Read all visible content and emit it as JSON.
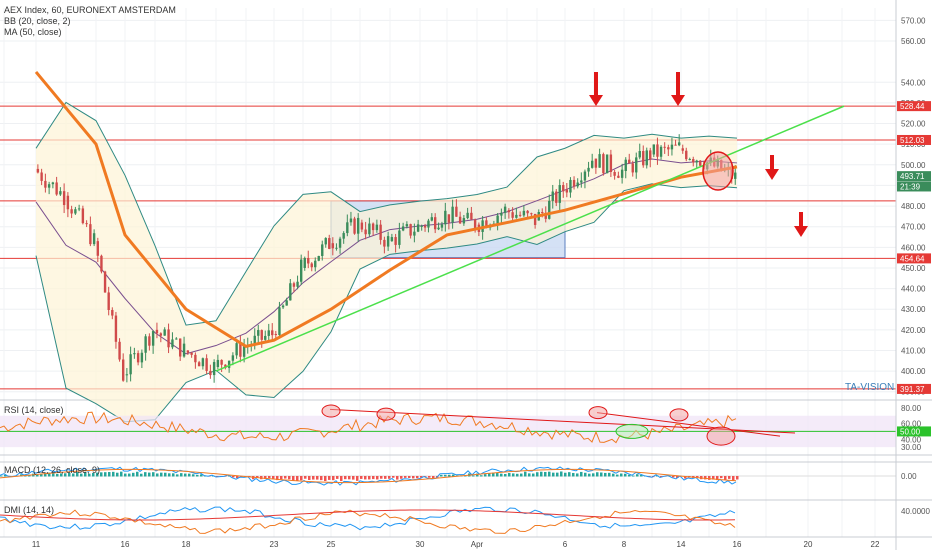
{
  "chart_title": "AEX Index, 60, EURONEXT AMSTERDAM",
  "watermark": "TA-VISION",
  "indicators": {
    "bb": "BB (20, close, 2)",
    "ma": "MA (50, close)",
    "rsi": "RSI (14, close)",
    "macd": "MACD (12, 26, close, 9)",
    "dmi": "DMI (14, 14)"
  },
  "colors": {
    "ma": "#f07a22",
    "bb": "#2f8a83",
    "level": "#e53935",
    "trend": "#4be04b",
    "box_fill": "#c9d9f2",
    "box_border": "#5b7fc0",
    "up": "#3a8c5b",
    "down": "#d04a4a"
  },
  "price_axis": {
    "min": 386,
    "max": 576,
    "ticks": [
      "570.00",
      "560.00",
      "540.00",
      "530.00",
      "520.00",
      "510.00",
      "500.00",
      "490.00",
      "480.00",
      "470.00",
      "460.00",
      "450.00",
      "440.00",
      "430.00",
      "420.00",
      "410.00",
      "400.00",
      "390.00"
    ]
  },
  "price_tags": [
    {
      "label": "528.44",
      "value": 528.44,
      "color": "#e53935"
    },
    {
      "label": "512.03",
      "value": 512.03,
      "color": "#e53935"
    },
    {
      "label": "493.71",
      "value": 494.5,
      "color": "#3a8c5b"
    },
    {
      "label": "21:39",
      "value": 489.5,
      "color": "#3a8c5b"
    },
    {
      "label": "454.64",
      "value": 454.64,
      "color": "#e53935"
    },
    {
      "label": "391.37",
      "value": 391.37,
      "color": "#e53935"
    }
  ],
  "rsi_axis": {
    "ticks": [
      "80.00",
      "60.00",
      "50.00",
      "40.00",
      "30.00"
    ],
    "current": "50.00"
  },
  "macd_axis": {
    "ticks": [
      "0.00"
    ]
  },
  "dmi_axis": {
    "ticks": [
      "40.0000"
    ]
  },
  "x_axis": {
    "labels": [
      "11",
      "16",
      "18",
      "23",
      "25",
      "30",
      "Apr",
      "6",
      "8",
      "14",
      "16",
      "20",
      "22"
    ]
  },
  "chart_data": {
    "type": "candlestick",
    "title": "AEX Index, 60, EURONEXT AMSTERDAM",
    "horizontal_levels": [
      528.44,
      512.03,
      482.5,
      454.64,
      391.37
    ],
    "consolidation_boxes": [
      {
        "from": "Mar 25",
        "to": "Apr 6",
        "low": 455,
        "high": 482.5
      },
      {
        "from": "Apr 6",
        "to": "Apr 18",
        "low": 482.5,
        "high": 512
      }
    ],
    "trendline": {
      "from": {
        "date": "Mar 19",
        "value": 400
      },
      "to": {
        "date": "Apr 20",
        "value": 528.44
      }
    },
    "close_series": [
      {
        "x": "Mar 11",
        "close": 498
      },
      {
        "x": "Mar 12",
        "close": 485
      },
      {
        "x": "Mar 13",
        "close": 463
      },
      {
        "x": "Mar 16",
        "close": 398
      },
      {
        "x": "Mar 17",
        "close": 420
      },
      {
        "x": "Mar 18",
        "close": 410
      },
      {
        "x": "Mar 19",
        "close": 402
      },
      {
        "x": "Mar 20",
        "close": 412
      },
      {
        "x": "Mar 23",
        "close": 418
      },
      {
        "x": "Mar 24",
        "close": 450
      },
      {
        "x": "Mar 25",
        "close": 462
      },
      {
        "x": "Mar 26",
        "close": 472
      },
      {
        "x": "Mar 27",
        "close": 463
      },
      {
        "x": "Mar 30",
        "close": 470
      },
      {
        "x": "Mar 31",
        "close": 476
      },
      {
        "x": "Apr 1",
        "close": 471
      },
      {
        "x": "Apr 2",
        "close": 478
      },
      {
        "x": "Apr 3",
        "close": 473
      },
      {
        "x": "Apr 6",
        "close": 488
      },
      {
        "x": "Apr 7",
        "close": 503
      },
      {
        "x": "Apr 8",
        "close": 497
      },
      {
        "x": "Apr 9",
        "close": 505
      },
      {
        "x": "Apr 14",
        "close": 508
      },
      {
        "x": "Apr 15",
        "close": 501
      },
      {
        "x": "Apr 16",
        "close": 493.71
      }
    ],
    "ma50": [
      {
        "x": "Mar 11",
        "y": 545
      },
      {
        "x": "Mar 13",
        "y": 510
      },
      {
        "x": "Mar 16",
        "y": 466
      },
      {
        "x": "Mar 18",
        "y": 430
      },
      {
        "x": "Mar 20",
        "y": 412
      },
      {
        "x": "Mar 23",
        "y": 415
      },
      {
        "x": "Mar 25",
        "y": 430
      },
      {
        "x": "Mar 27",
        "y": 449
      },
      {
        "x": "Mar 31",
        "y": 466
      },
      {
        "x": "Apr 2",
        "y": 472
      },
      {
        "x": "Apr 6",
        "y": 478
      },
      {
        "x": "Apr 8",
        "y": 486
      },
      {
        "x": "Apr 14",
        "y": 494
      },
      {
        "x": "Apr 16",
        "y": 499
      }
    ],
    "annotations": [
      "down arrows at 528-540 level",
      "circle at 500 breakdown"
    ]
  }
}
